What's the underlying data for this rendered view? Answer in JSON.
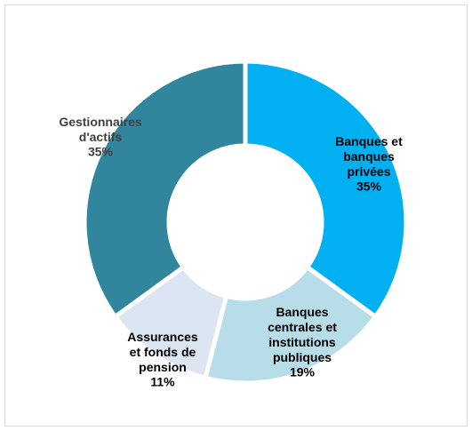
{
  "chart_data": {
    "type": "donut",
    "categories": [
      "Banques et banques privées",
      "Banques centrales et institutions publiques",
      "Assurances et fonds de pension",
      "Gestionnaires d'actifs"
    ],
    "values": [
      35,
      19,
      11,
      35
    ],
    "value_labels": [
      "35%",
      "19%",
      "11%",
      "35%"
    ],
    "colors": [
      "#00b0f0",
      "#b7dde8",
      "#dce6f2",
      "#31859c"
    ]
  }
}
